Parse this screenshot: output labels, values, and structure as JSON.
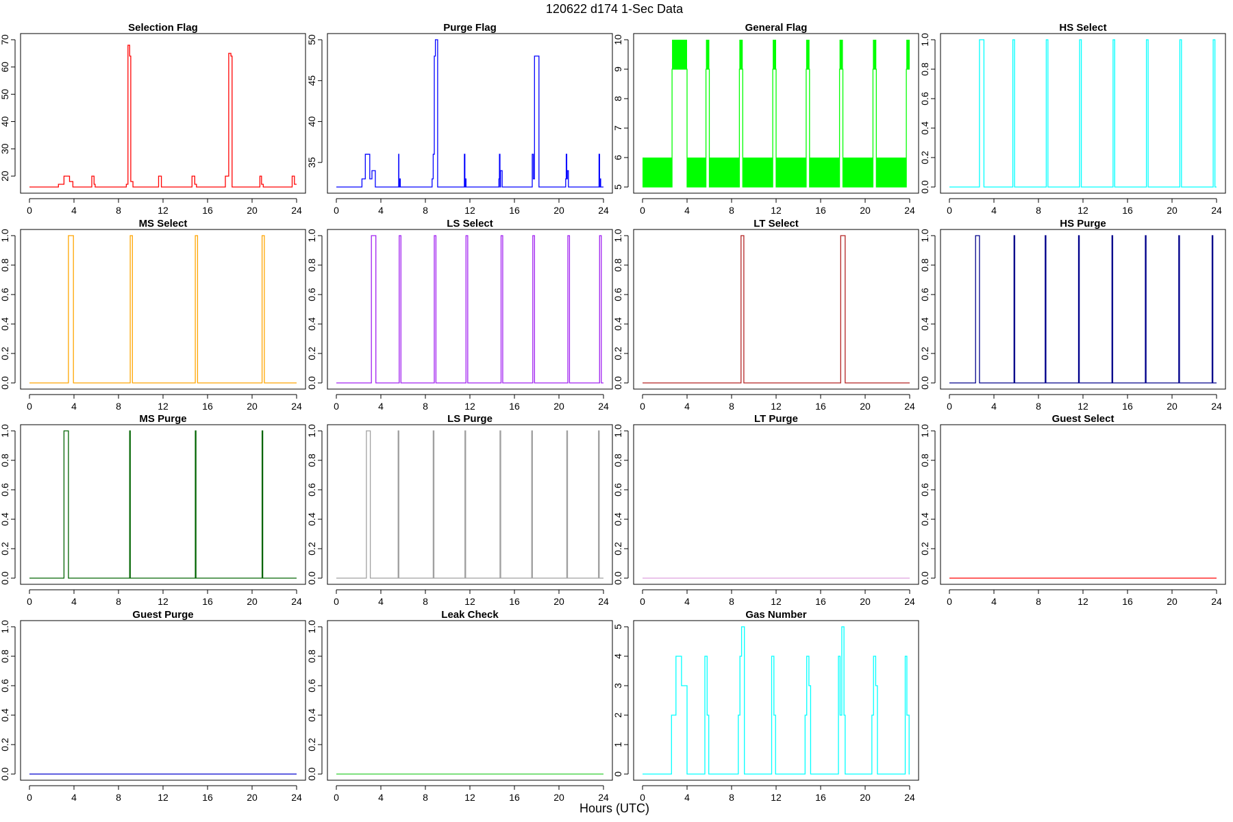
{
  "figure": {
    "title": "120622   d174   1-Sec Data",
    "xlabel": "Hours (UTC)"
  },
  "chart_data": [
    {
      "type": "line",
      "step": true,
      "title": "Selection Flag",
      "color": "#ff0000",
      "xlim": [
        0,
        24
      ],
      "ylim": [
        16,
        70
      ],
      "xticks": [
        0,
        4,
        8,
        12,
        16,
        20,
        24
      ],
      "yticks": [
        20,
        30,
        40,
        50,
        60,
        70
      ],
      "x": [
        0,
        2.6,
        2.6,
        3.1,
        3.1,
        3.6,
        3.6,
        3.9,
        3.9,
        5.6,
        5.6,
        5.8,
        5.8,
        5.9,
        5.9,
        8.7,
        8.7,
        8.85,
        8.85,
        9.0,
        9.0,
        9.1,
        9.1,
        9.3,
        9.3,
        11.6,
        11.6,
        11.85,
        11.85,
        14.6,
        14.6,
        14.85,
        14.85,
        15.0,
        15.0,
        17.6,
        17.6,
        17.9,
        17.9,
        18.1,
        18.1,
        18.2,
        18.2,
        20.7,
        20.7,
        20.85,
        20.85,
        21.0,
        21.0,
        23.6,
        23.6,
        23.8,
        23.8,
        24
      ],
      "y": [
        16,
        16,
        17,
        17,
        20,
        20,
        18,
        18,
        16,
        16,
        20,
        20,
        17,
        17,
        16,
        16,
        17,
        17,
        68,
        68,
        64,
        64,
        18,
        18,
        16,
        16,
        20,
        20,
        16,
        16,
        20,
        20,
        17,
        17,
        16,
        16,
        20,
        20,
        65,
        65,
        64,
        64,
        16,
        16,
        20,
        20,
        17,
        17,
        16,
        16,
        20,
        20,
        17,
        17
      ]
    },
    {
      "type": "line",
      "step": true,
      "title": "Purge Flag",
      "color": "#0000ff",
      "xlim": [
        0,
        24
      ],
      "ylim": [
        32,
        50
      ],
      "xticks": [
        0,
        4,
        8,
        12,
        16,
        20,
        24
      ],
      "yticks": [
        35,
        40,
        45,
        50
      ],
      "x": [
        0,
        2.3,
        2.3,
        2.6,
        2.6,
        3.0,
        3.0,
        3.2,
        3.2,
        3.5,
        3.5,
        5.6,
        5.6,
        5.62,
        5.62,
        5.7,
        5.7,
        5.75,
        5.75,
        8.6,
        8.6,
        8.7,
        8.7,
        8.8,
        8.8,
        8.9,
        8.9,
        9.1,
        9.1,
        11.5,
        11.5,
        11.55,
        11.55,
        11.6,
        11.6,
        11.65,
        11.65,
        14.6,
        14.6,
        14.65,
        14.65,
        14.7,
        14.7,
        14.75,
        14.75,
        14.9,
        14.9,
        17.6,
        17.6,
        17.7,
        17.7,
        17.8,
        17.8,
        18.2,
        18.2,
        20.6,
        20.6,
        20.65,
        20.65,
        20.7,
        20.7,
        20.75,
        20.75,
        20.85,
        20.85,
        23.6,
        23.6,
        23.65,
        23.65,
        23.7,
        23.7,
        23.75,
        23.75,
        23.85,
        23.85,
        24
      ],
      "y": [
        32,
        32,
        33,
        33,
        36,
        36,
        33,
        33,
        34,
        34,
        32,
        32,
        36,
        36,
        32,
        32,
        33,
        33,
        32,
        32,
        33,
        33,
        36,
        36,
        48,
        48,
        50,
        50,
        32,
        32,
        36,
        36,
        32,
        32,
        33,
        33,
        32,
        32,
        33,
        33,
        36,
        36,
        32,
        32,
        34,
        34,
        32,
        32,
        36,
        36,
        33,
        33,
        48,
        48,
        32,
        32,
        33,
        33,
        36,
        36,
        33,
        33,
        34,
        34,
        32,
        32,
        36,
        36,
        32,
        32,
        33,
        33,
        32,
        32,
        32,
        32
      ]
    },
    {
      "type": "line",
      "step": true,
      "title": "General Flag",
      "color": "#00ff00",
      "xlim": [
        0,
        24
      ],
      "ylim": [
        5,
        10
      ],
      "xticks": [
        0,
        4,
        8,
        12,
        16,
        20,
        24
      ],
      "yticks": [
        5,
        6,
        7,
        8,
        9,
        10
      ],
      "x": [
        0,
        2.65,
        2.65,
        4.0,
        4.0,
        5.7,
        5.7,
        6.0,
        6.0,
        8.7,
        8.7,
        9.0,
        9.0,
        11.7,
        11.7,
        12.0,
        12.0,
        14.7,
        14.7,
        15.0,
        15.0,
        17.7,
        17.7,
        18.0,
        18.0,
        20.7,
        20.7,
        21.0,
        21.0,
        23.7,
        23.7,
        24
      ],
      "y": [
        5,
        5,
        9,
        9,
        5,
        5,
        9,
        9,
        5,
        5,
        9,
        9,
        5,
        5,
        9,
        9,
        5,
        5,
        9,
        9,
        5,
        5,
        9,
        9,
        5,
        5,
        9,
        9,
        5,
        5,
        9,
        9
      ],
      "filled_bands": [
        {
          "band": [
            5,
            6
          ],
          "ranges": [
            [
              0,
              2.65
            ],
            [
              4.0,
              5.7
            ],
            [
              6.0,
              8.7
            ],
            [
              9.0,
              11.7
            ],
            [
              12.0,
              14.7
            ],
            [
              15.0,
              17.7
            ],
            [
              18.0,
              20.7
            ],
            [
              21.0,
              23.7
            ]
          ]
        },
        {
          "band": [
            9,
            10
          ],
          "ranges": [
            [
              2.65,
              4.0
            ],
            [
              5.7,
              6.0
            ],
            [
              8.7,
              9.0
            ],
            [
              11.7,
              12.0
            ],
            [
              14.7,
              15.0
            ],
            [
              17.7,
              18.0
            ],
            [
              20.7,
              21.0
            ],
            [
              23.7,
              24
            ]
          ]
        }
      ]
    },
    {
      "type": "line",
      "step": true,
      "title": "HS Select",
      "color": "#00ffff",
      "xlim": [
        0,
        24
      ],
      "ylim": [
        0,
        1
      ],
      "xticks": [
        0,
        4,
        8,
        12,
        16,
        20,
        24
      ],
      "yticks": [
        0.0,
        0.2,
        0.4,
        0.6,
        0.8,
        1.0
      ],
      "x": [
        0,
        2.7,
        2.7,
        3.1,
        3.1,
        5.7,
        5.7,
        5.85,
        5.85,
        8.7,
        8.7,
        8.85,
        8.85,
        11.7,
        11.7,
        11.85,
        11.85,
        14.7,
        14.7,
        14.85,
        14.85,
        17.7,
        17.7,
        17.85,
        17.85,
        20.7,
        20.7,
        20.85,
        20.85,
        23.7,
        23.7,
        23.85,
        23.85,
        24
      ],
      "y": [
        0,
        0,
        1,
        1,
        0,
        0,
        1,
        1,
        0,
        0,
        1,
        1,
        0,
        0,
        1,
        1,
        0,
        0,
        1,
        1,
        0,
        0,
        1,
        1,
        0,
        0,
        1,
        1,
        0,
        0,
        1,
        1,
        0,
        0
      ]
    },
    {
      "type": "line",
      "step": true,
      "title": "MS Select",
      "color": "#ffa500",
      "xlim": [
        0,
        24
      ],
      "ylim": [
        0,
        1
      ],
      "xticks": [
        0,
        4,
        8,
        12,
        16,
        20,
        24
      ],
      "yticks": [
        0.0,
        0.2,
        0.4,
        0.6,
        0.8,
        1.0
      ],
      "x": [
        0,
        3.5,
        3.5,
        3.95,
        3.95,
        9.05,
        9.05,
        9.25,
        9.25,
        14.9,
        14.9,
        15.1,
        15.1,
        20.9,
        20.9,
        21.1,
        21.1,
        24
      ],
      "y": [
        0,
        0,
        1,
        1,
        0,
        0,
        1,
        1,
        0,
        0,
        1,
        1,
        0,
        0,
        1,
        1,
        0,
        0
      ]
    },
    {
      "type": "line",
      "step": true,
      "title": "LS Select",
      "color": "#a020f0",
      "xlim": [
        0,
        24
      ],
      "ylim": [
        0,
        1
      ],
      "xticks": [
        0,
        4,
        8,
        12,
        16,
        20,
        24
      ],
      "yticks": [
        0.0,
        0.2,
        0.4,
        0.6,
        0.8,
        1.0
      ],
      "x": [
        0,
        3.15,
        3.15,
        3.55,
        3.55,
        5.65,
        5.65,
        5.8,
        5.8,
        8.8,
        8.8,
        8.95,
        8.95,
        11.65,
        11.65,
        11.8,
        11.8,
        14.8,
        14.8,
        14.95,
        14.95,
        17.65,
        17.65,
        17.8,
        17.8,
        20.8,
        20.8,
        20.95,
        20.95,
        23.65,
        23.65,
        23.8,
        23.8,
        24
      ],
      "y": [
        0,
        0,
        1,
        1,
        0,
        0,
        1,
        1,
        0,
        0,
        1,
        1,
        0,
        0,
        1,
        1,
        0,
        0,
        1,
        1,
        0,
        0,
        1,
        1,
        0,
        0,
        1,
        1,
        0,
        0,
        1,
        1,
        0,
        0
      ]
    },
    {
      "type": "line",
      "step": true,
      "title": "LT Select",
      "color": "#b22222",
      "xlim": [
        0,
        24
      ],
      "ylim": [
        0,
        1
      ],
      "xticks": [
        0,
        4,
        8,
        12,
        16,
        20,
        24
      ],
      "yticks": [
        0.0,
        0.2,
        0.4,
        0.6,
        0.8,
        1.0
      ],
      "x": [
        0,
        8.85,
        8.85,
        9.1,
        9.1,
        17.8,
        17.8,
        18.2,
        18.2,
        24
      ],
      "y": [
        0,
        0,
        1,
        1,
        0,
        0,
        1,
        1,
        0,
        0
      ]
    },
    {
      "type": "line",
      "step": true,
      "title": "HS Purge",
      "color": "#00008b",
      "xlim": [
        0,
        24
      ],
      "ylim": [
        0,
        1
      ],
      "xticks": [
        0,
        4,
        8,
        12,
        16,
        20,
        24
      ],
      "yticks": [
        0.0,
        0.2,
        0.4,
        0.6,
        0.8,
        1.0
      ],
      "x": [
        0,
        2.35,
        2.35,
        2.7,
        2.7,
        5.8,
        5.8,
        5.87,
        5.87,
        8.6,
        8.6,
        8.67,
        8.67,
        11.6,
        11.6,
        11.67,
        11.67,
        14.6,
        14.6,
        14.67,
        14.67,
        17.6,
        17.6,
        17.67,
        17.67,
        20.6,
        20.6,
        20.67,
        20.67,
        23.6,
        23.6,
        23.67,
        23.67,
        24
      ],
      "y": [
        0,
        0,
        1,
        1,
        0,
        0,
        1,
        1,
        0,
        0,
        1,
        1,
        0,
        0,
        1,
        1,
        0,
        0,
        1,
        1,
        0,
        0,
        1,
        1,
        0,
        0,
        1,
        1,
        0,
        0,
        1,
        1,
        0,
        0
      ]
    },
    {
      "type": "line",
      "step": true,
      "title": "MS Purge",
      "color": "#006400",
      "xlim": [
        0,
        24
      ],
      "ylim": [
        0,
        1
      ],
      "xticks": [
        0,
        4,
        8,
        12,
        16,
        20,
        24
      ],
      "yticks": [
        0.0,
        0.2,
        0.4,
        0.6,
        0.8,
        1.0
      ],
      "x": [
        0,
        3.1,
        3.1,
        3.5,
        3.5,
        9.0,
        9.0,
        9.06,
        9.06,
        14.9,
        14.9,
        14.96,
        14.96,
        20.9,
        20.9,
        20.96,
        20.96,
        24
      ],
      "y": [
        0,
        0,
        1,
        1,
        0,
        0,
        1,
        1,
        0,
        0,
        1,
        1,
        0,
        0,
        1,
        1,
        0,
        0
      ]
    },
    {
      "type": "line",
      "step": true,
      "title": "LS Purge",
      "color": "#a0a0a0",
      "xlim": [
        0,
        24
      ],
      "ylim": [
        0,
        1
      ],
      "xticks": [
        0,
        4,
        8,
        12,
        16,
        20,
        24
      ],
      "yticks": [
        0.0,
        0.2,
        0.4,
        0.6,
        0.8,
        1.0
      ],
      "x": [
        0,
        2.7,
        2.7,
        3.05,
        3.05,
        5.55,
        5.55,
        5.62,
        5.62,
        8.7,
        8.7,
        8.77,
        8.77,
        11.55,
        11.55,
        11.62,
        11.62,
        14.7,
        14.7,
        14.77,
        14.77,
        17.55,
        17.55,
        17.62,
        17.62,
        20.7,
        20.7,
        20.77,
        20.77,
        23.55,
        23.55,
        23.62,
        23.62,
        24
      ],
      "y": [
        0,
        0,
        1,
        1,
        0,
        0,
        1,
        1,
        0,
        0,
        1,
        1,
        0,
        0,
        1,
        1,
        0,
        0,
        1,
        1,
        0,
        0,
        1,
        1,
        0,
        0,
        1,
        1,
        0,
        0,
        1,
        1,
        0,
        0
      ]
    },
    {
      "type": "line",
      "step": true,
      "title": "LT Purge",
      "color": "#dda0dd",
      "xlim": [
        0,
        24
      ],
      "ylim": [
        0,
        1
      ],
      "xticks": [
        0,
        4,
        8,
        12,
        16,
        20,
        24
      ],
      "yticks": [
        0.0,
        0.2,
        0.4,
        0.6,
        0.8,
        1.0
      ],
      "x": [
        0,
        24
      ],
      "y": [
        0,
        0
      ]
    },
    {
      "type": "line",
      "step": true,
      "title": "Guest Select",
      "color": "#ff0000",
      "xlim": [
        0,
        24
      ],
      "ylim": [
        0,
        1
      ],
      "xticks": [
        0,
        4,
        8,
        12,
        16,
        20,
        24
      ],
      "yticks": [
        0.0,
        0.2,
        0.4,
        0.6,
        0.8,
        1.0
      ],
      "x": [
        0,
        24
      ],
      "y": [
        0,
        0
      ]
    },
    {
      "type": "line",
      "step": true,
      "title": "Guest Purge",
      "color": "#0000cd",
      "xlim": [
        0,
        24
      ],
      "ylim": [
        0,
        1
      ],
      "xticks": [
        0,
        4,
        8,
        12,
        16,
        20,
        24
      ],
      "yticks": [
        0.0,
        0.2,
        0.4,
        0.6,
        0.8,
        1.0
      ],
      "x": [
        0,
        24
      ],
      "y": [
        0,
        0
      ]
    },
    {
      "type": "line",
      "step": true,
      "title": "Leak Check",
      "color": "#32cd32",
      "xlim": [
        0,
        24
      ],
      "ylim": [
        0,
        1
      ],
      "xticks": [
        0,
        4,
        8,
        12,
        16,
        20,
        24
      ],
      "yticks": [
        0.0,
        0.2,
        0.4,
        0.6,
        0.8,
        1.0
      ],
      "x": [
        0,
        24
      ],
      "y": [
        0,
        0
      ]
    },
    {
      "type": "line",
      "step": true,
      "title": "Gas Number",
      "color": "#00ffff",
      "xlim": [
        0,
        24
      ],
      "ylim": [
        0,
        5
      ],
      "xticks": [
        0,
        4,
        8,
        12,
        16,
        20,
        24
      ],
      "yticks": [
        0,
        1,
        2,
        3,
        4,
        5
      ],
      "x": [
        0,
        2.6,
        2.6,
        3.0,
        3.0,
        3.5,
        3.5,
        4.0,
        4.0,
        5.6,
        5.6,
        5.8,
        5.8,
        5.95,
        5.95,
        8.6,
        8.6,
        8.75,
        8.75,
        8.9,
        8.9,
        9.15,
        9.15,
        11.6,
        11.6,
        11.8,
        11.8,
        11.95,
        11.95,
        14.6,
        14.6,
        14.75,
        14.75,
        14.95,
        14.95,
        15.1,
        15.1,
        17.6,
        17.6,
        17.75,
        17.75,
        17.9,
        17.9,
        18.1,
        18.1,
        18.2,
        18.2,
        20.6,
        20.6,
        20.75,
        20.75,
        20.95,
        20.95,
        21.1,
        21.1,
        23.6,
        23.6,
        23.75,
        23.75,
        23.95,
        23.95,
        24
      ],
      "y": [
        0,
        0,
        2,
        2,
        4,
        4,
        3,
        3,
        0,
        0,
        4,
        4,
        2,
        2,
        0,
        0,
        2,
        2,
        4,
        4,
        5,
        5,
        0,
        0,
        4,
        4,
        2,
        2,
        0,
        0,
        2,
        2,
        4,
        4,
        3,
        3,
        0,
        0,
        4,
        4,
        2,
        2,
        5,
        5,
        2,
        2,
        0,
        0,
        2,
        2,
        4,
        4,
        3,
        3,
        0,
        0,
        4,
        4,
        2,
        2,
        0,
        0
      ]
    }
  ]
}
